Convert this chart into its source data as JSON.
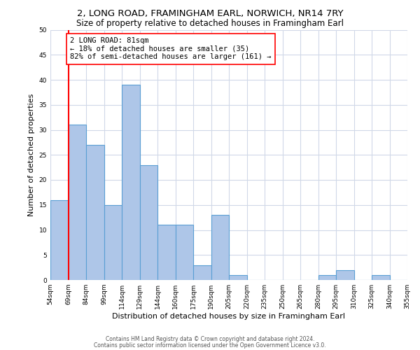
{
  "title1": "2, LONG ROAD, FRAMINGHAM EARL, NORWICH, NR14 7RY",
  "title2": "Size of property relative to detached houses in Framingham Earl",
  "xlabel": "Distribution of detached houses by size in Framingham Earl",
  "ylabel": "Number of detached properties",
  "footnote1": "Contains HM Land Registry data © Crown copyright and database right 2024.",
  "footnote2": "Contains public sector information licensed under the Open Government Licence v3.0.",
  "annotation_line1": "2 LONG ROAD: 81sqm",
  "annotation_line2": "← 18% of detached houses are smaller (35)",
  "annotation_line3": "82% of semi-detached houses are larger (161) →",
  "bar_values": [
    16,
    31,
    27,
    15,
    39,
    23,
    11,
    11,
    3,
    13,
    1,
    0,
    0,
    0,
    0,
    1,
    2,
    0,
    1,
    0
  ],
  "bin_labels": [
    "54sqm",
    "69sqm",
    "84sqm",
    "99sqm",
    "114sqm",
    "129sqm",
    "144sqm",
    "160sqm",
    "175sqm",
    "190sqm",
    "205sqm",
    "220sqm",
    "235sqm",
    "250sqm",
    "265sqm",
    "280sqm",
    "295sqm",
    "310sqm",
    "325sqm",
    "340sqm",
    "355sqm"
  ],
  "bar_color": "#aec6e8",
  "bar_edge_color": "#5a9fd4",
  "ylim": [
    0,
    50
  ],
  "yticks": [
    0,
    5,
    10,
    15,
    20,
    25,
    30,
    35,
    40,
    45,
    50
  ],
  "background_color": "#ffffff",
  "grid_color": "#d0d8e8",
  "title1_fontsize": 9.5,
  "title2_fontsize": 8.5,
  "xlabel_fontsize": 8,
  "ylabel_fontsize": 8,
  "tick_fontsize": 6.5,
  "annotation_fontsize": 7.5,
  "footnote_fontsize": 5.5
}
